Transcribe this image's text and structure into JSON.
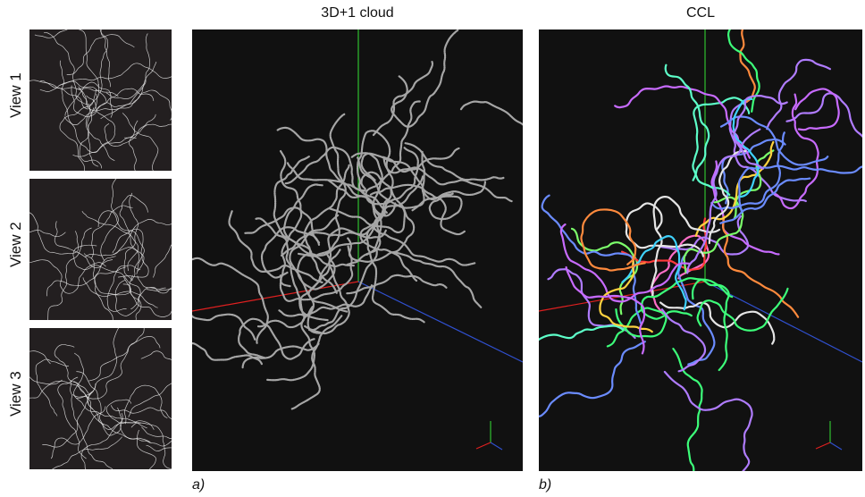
{
  "views": [
    {
      "label": "View 1"
    },
    {
      "label": "View 2"
    },
    {
      "label": "View 3"
    }
  ],
  "panels": [
    {
      "title": "3D+1 cloud",
      "sublabel": "a)",
      "mode": "gray"
    },
    {
      "title": "CCL",
      "sublabel": "b)",
      "mode": "color"
    }
  ],
  "colors": {
    "thumb_bg": "#231f20",
    "panel_bg": "#111111",
    "axis_x": "#e02020",
    "axis_y": "#30c030",
    "axis_z": "#3050d0",
    "cloud": "#a6a6a6",
    "thumb_tracks": "#e6e6e6",
    "clusters": [
      "#ff6ec7",
      "#ffd23f",
      "#3fd3ff",
      "#7cff6b",
      "#b07cff",
      "#ff8a3d",
      "#ff3b3b",
      "#5dffc9",
      "#6b8cff",
      "#e5e5e5",
      "#c86bff",
      "#3dff7a"
    ]
  }
}
